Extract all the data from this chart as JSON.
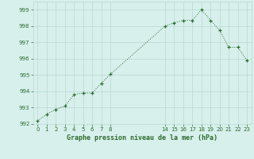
{
  "x": [
    0,
    1,
    2,
    3,
    4,
    5,
    6,
    7,
    8,
    14,
    15,
    16,
    17,
    18,
    19,
    20,
    21,
    22,
    23
  ],
  "y": [
    992.2,
    992.6,
    992.9,
    993.1,
    993.8,
    993.9,
    993.9,
    994.5,
    995.05,
    998.0,
    998.2,
    998.35,
    998.35,
    999.0,
    998.35,
    997.75,
    996.7,
    996.7,
    995.9
  ],
  "xlim": [
    -0.5,
    23.5
  ],
  "ylim": [
    992,
    999.5
  ],
  "yticks": [
    992,
    993,
    994,
    995,
    996,
    997,
    998,
    999
  ],
  "xticks": [
    0,
    1,
    2,
    3,
    4,
    5,
    6,
    7,
    8,
    14,
    15,
    16,
    17,
    18,
    19,
    20,
    21,
    22,
    23
  ],
  "xlabel": "Graphe pression niveau de la mer (hPa)",
  "line_color": "#2d6a2d",
  "marker": "+",
  "bg_color": "#d7f0ec",
  "grid_color": "#b8d8d0",
  "tick_label_color": "#2d6a2d"
}
